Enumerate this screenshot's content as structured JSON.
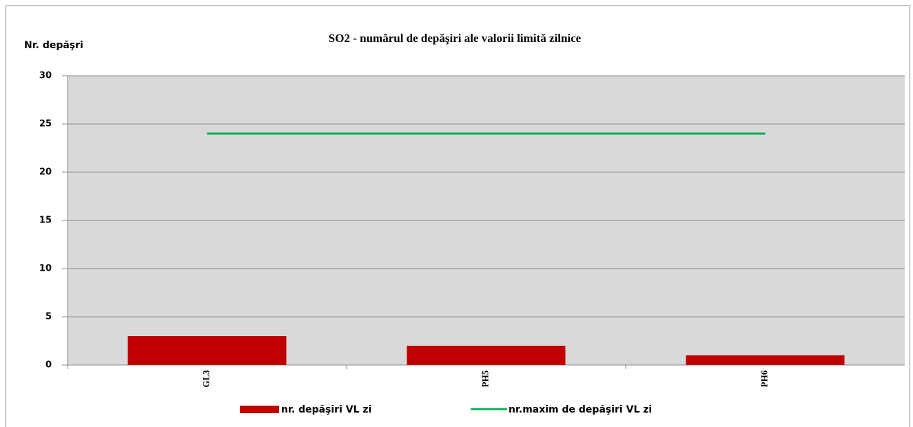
{
  "chart_data": {
    "type": "bar",
    "title": "SO2 - numărul  de depăşiri ale valorii limită zilnice",
    "y_label": "Nr. depăşri",
    "categories": [
      "GL3",
      "PH5",
      "PH6"
    ],
    "series": [
      {
        "name": "nr. depăşiri VL zi",
        "type": "bar",
        "color": "#c00000",
        "values": [
          3,
          2,
          1
        ]
      },
      {
        "name": "nr.maxim de depăşiri VL zi",
        "type": "line",
        "color": "#00b050",
        "values": [
          24,
          24,
          24
        ]
      }
    ],
    "ylim": [
      0,
      30
    ],
    "yticks": [
      0,
      5,
      10,
      15,
      20,
      25,
      30
    ],
    "grid": true
  }
}
